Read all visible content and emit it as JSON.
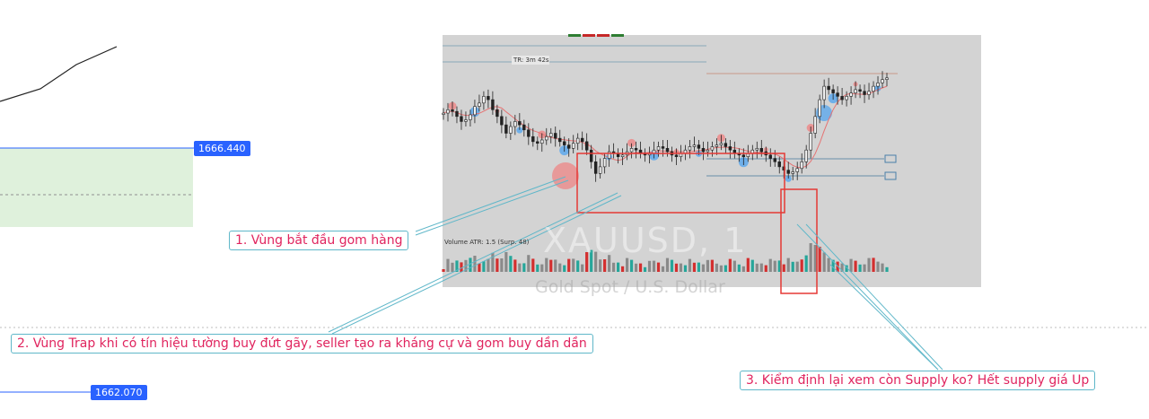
{
  "price_tags": {
    "upper": "1666.440",
    "lower": "1662.070"
  },
  "inset": {
    "tr_label": "TR: 3m 42s",
    "volume_label": "Volume ATR: 1.5  (Surp. 48)",
    "watermark_symbol": "XAUUSD, 1",
    "watermark_name": "Gold Spot / U.S. Dollar"
  },
  "callouts": {
    "c1": "1. Vùng bắt đầu gom hàng",
    "c2": "2. Vùng Trap khi có tín hiệu tường buy đứt gãy, seller tạo ra kháng cự và gom buy dần dần",
    "c3": "3. Kiểm định lại xem còn Supply ko? Hết supply giá Up"
  },
  "colors": {
    "label_text": "#e0245e",
    "label_border": "#5fb7c9",
    "price_tag_bg": "#2962ff",
    "highlight_box": "#e53935",
    "zone_fill": "#dff1dc",
    "inset_bg": "#d3d3d3",
    "bubble_blue": "#4da3f0",
    "bubble_red": "#f08080",
    "vol_red": "#d32f2f",
    "vol_teal": "#26a69a",
    "vol_gray": "#8a8a8a"
  },
  "chart_data": {
    "type": "line",
    "symbol": "XAUUSD, 1",
    "description": "Gold Spot / U.S. Dollar",
    "price_levels": [
      1666.44,
      1662.07
    ],
    "price_series": [
      62,
      64,
      63,
      60,
      57,
      58,
      61,
      66,
      68,
      72,
      70,
      64,
      60,
      55,
      50,
      54,
      57,
      55,
      52,
      48,
      45,
      44,
      46,
      48,
      50,
      47,
      45,
      43,
      41,
      44,
      47,
      45,
      40,
      33,
      26,
      30,
      35,
      39,
      38,
      36,
      37,
      39,
      41,
      40,
      38,
      37,
      38,
      40,
      42,
      41,
      39,
      37,
      36,
      38,
      40,
      42,
      43,
      41,
      39,
      40,
      42,
      43,
      44,
      42,
      40,
      38,
      37,
      36,
      38,
      40,
      41,
      39,
      37,
      35,
      33,
      30,
      28,
      26,
      27,
      29,
      33,
      40,
      50,
      60,
      70,
      78,
      76,
      74,
      72,
      70,
      72,
      74,
      76,
      75,
      73,
      75,
      78,
      80,
      82,
      83
    ],
    "annotations": [
      "1. Vùng bắt đầu gom hàng",
      "2. Vùng Trap khi có tín hiệu tường buy đứt gãy, seller tạo ra kháng cự và gom buy dần dần",
      "3. Kiểm định lại xem còn Supply ko? Hết supply giá Up"
    ]
  }
}
